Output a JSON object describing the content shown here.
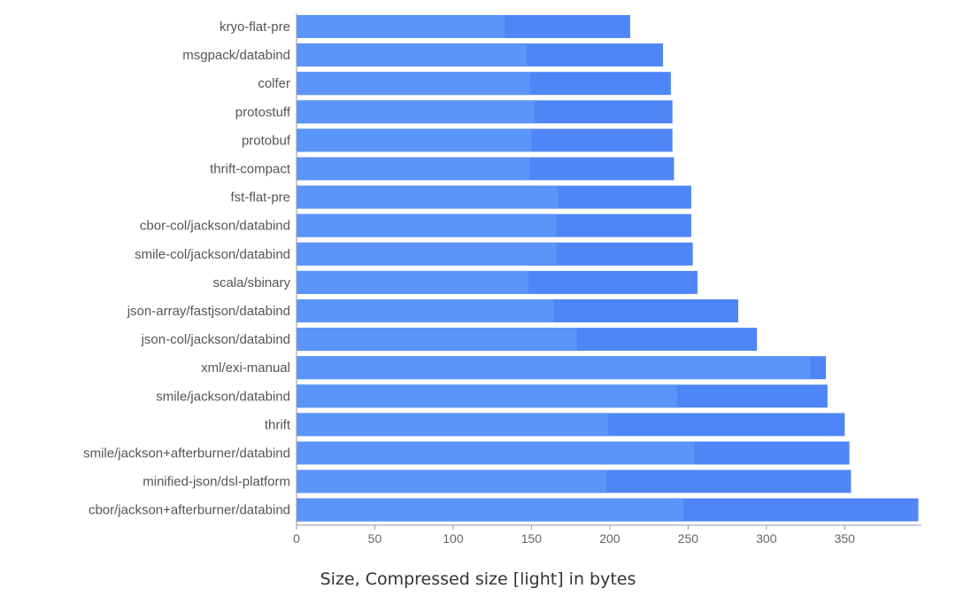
{
  "chart_data": {
    "type": "bar",
    "orientation": "horizontal",
    "stacked_overlay": true,
    "caption": "Size, Compressed size [light] in bytes",
    "categories": [
      "kryo-flat-pre",
      "msgpack/databind",
      "colfer",
      "protostuff",
      "protobuf",
      "thrift-compact",
      "fst-flat-pre",
      "cbor-col/jackson/databind",
      "smile-col/jackson/databind",
      "scala/sbinary",
      "json-array/fastjson/databind",
      "json-col/jackson/databind",
      "xml/exi-manual",
      "smile/jackson/databind",
      "thrift",
      "smile/jackson+afterburner/databind",
      "minified-json/dsl-platform",
      "cbor/jackson+afterburner/databind"
    ],
    "series": [
      {
        "values": [
          213,
          234,
          239,
          240,
          240,
          241,
          252,
          252,
          253,
          256,
          282,
          294,
          338,
          339,
          350,
          353,
          354,
          397
        ],
        "color": "#4f86f7"
      },
      {
        "values": [
          133,
          147,
          149,
          152,
          150,
          149,
          167,
          166,
          166,
          148,
          164,
          179,
          328,
          243,
          199,
          254,
          198,
          247
        ],
        "color": "#5b95fa"
      }
    ],
    "xticks": [
      0,
      50,
      100,
      150,
      200,
      250,
      300,
      350
    ],
    "xlim": [
      0,
      399
    ],
    "grid": false,
    "legend": "none"
  }
}
